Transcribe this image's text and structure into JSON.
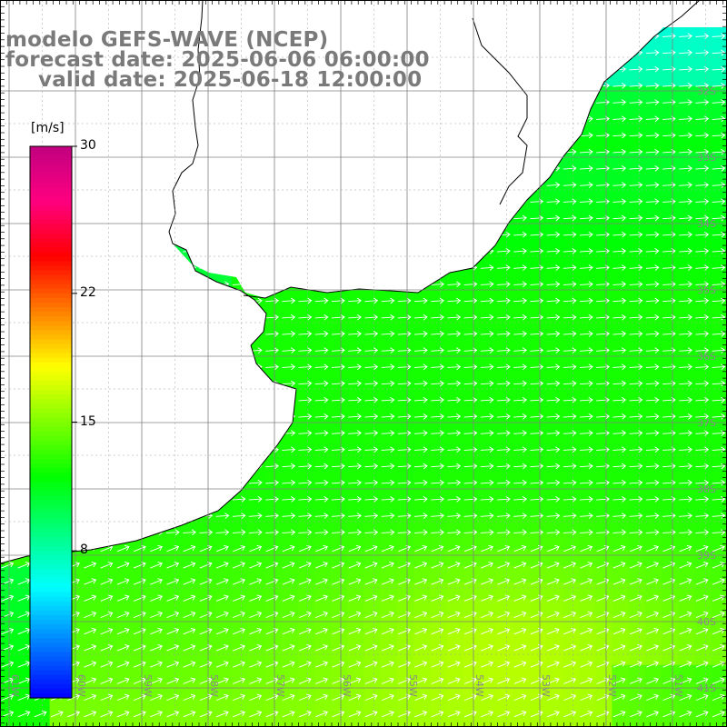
{
  "title": {
    "line1": "modelo GEFS-WAVE (NCEP)",
    "line2": "forecast date: 2025-06-06 06:00:00",
    "line3": "valid date: 2025-06-18 12:00:00"
  },
  "colorbar": {
    "units": "[m/s]",
    "min": 0,
    "max": 30,
    "ticks": [
      {
        "value": 30,
        "label": "30"
      },
      {
        "value": 22,
        "label": "22"
      },
      {
        "value": 15,
        "label": "15"
      },
      {
        "value": 8,
        "label": "8"
      }
    ],
    "colors": [
      "#0000ff",
      "#0080ff",
      "#00ffff",
      "#00ff80",
      "#00ff00",
      "#80ff00",
      "#ffff00",
      "#ff8000",
      "#ff0000",
      "#ff0080",
      "#c00080"
    ]
  },
  "map": {
    "lon_range": [
      -61,
      -50
    ],
    "lat_range": [
      -41,
      -31
    ],
    "lat_labels": [
      "32S",
      "33S",
      "34S",
      "35S",
      "36S",
      "37S",
      "38S",
      "39S",
      "40S",
      "41S"
    ],
    "lon_labels": [
      "61W",
      "60W",
      "59W",
      "58W",
      "57W",
      "56W",
      "55W",
      "54W",
      "53W",
      "52W",
      "51W"
    ],
    "wind_direction": "W to E (eastward)",
    "colors": {
      "land": "#ffffff",
      "coastline": "#000000",
      "grid": "#808080",
      "arrow": "#ffffff"
    }
  }
}
